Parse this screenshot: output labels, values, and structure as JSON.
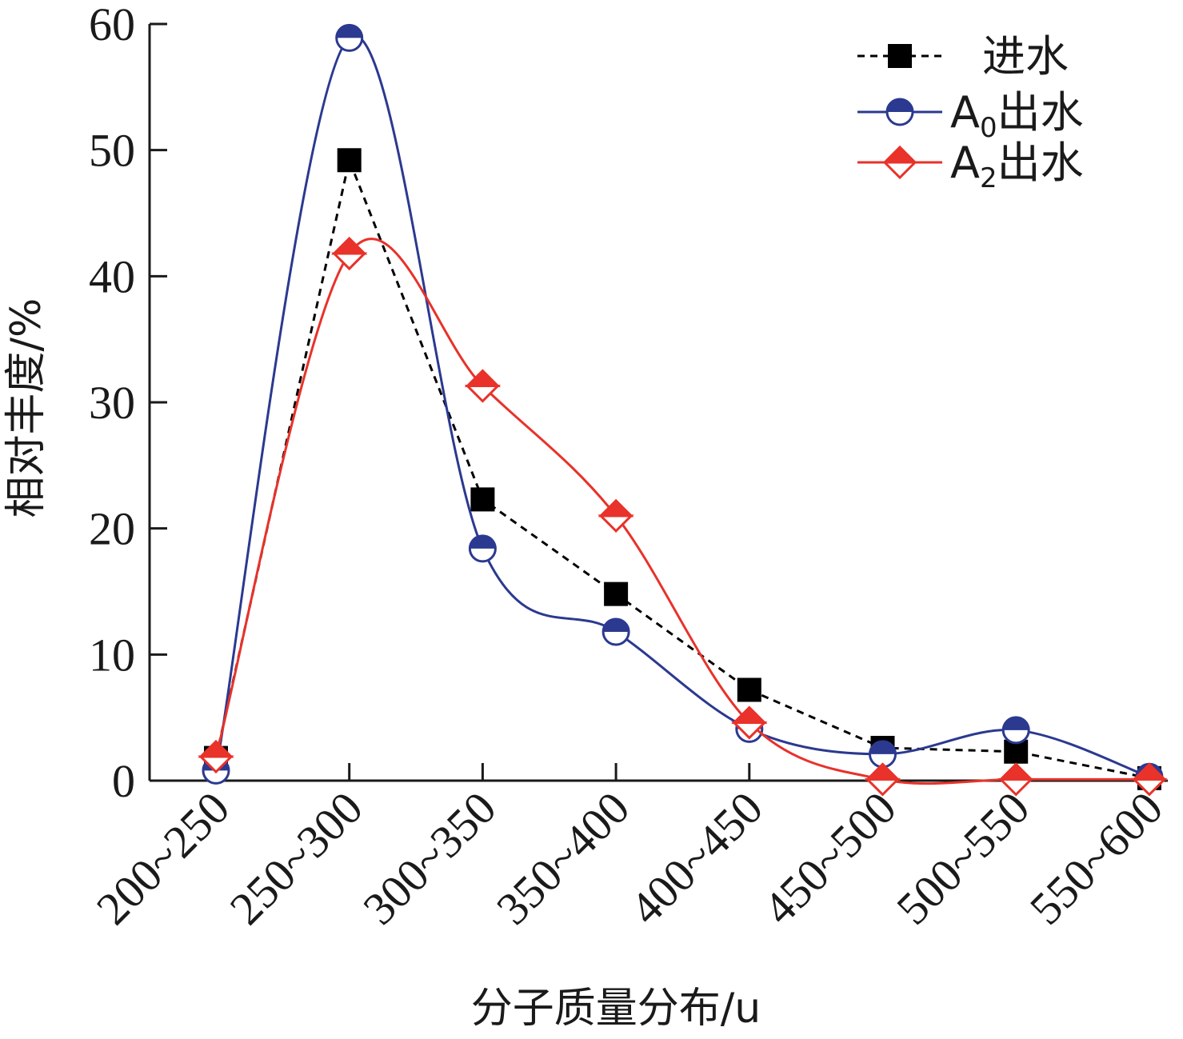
{
  "chart_data": {
    "type": "line",
    "xlabel": "分子质量分布/u",
    "ylabel": "相对丰度/%",
    "categories": [
      "200~250",
      "250~300",
      "300~350",
      "350~400",
      "400~450",
      "450~500",
      "500~550",
      "550~600"
    ],
    "ylim": [
      0,
      60
    ],
    "yticks": [
      "0",
      "10",
      "20",
      "30",
      "40",
      "50",
      "60"
    ],
    "grid": false,
    "legend_position": "top-right",
    "series": [
      {
        "name": "进水",
        "legend_main": "进水",
        "legend_sub": "",
        "legend_tail": "",
        "values": [
          1.8,
          49.2,
          22.3,
          14.8,
          7.2,
          2.6,
          2.3,
          0.2
        ],
        "color": "#000000",
        "line": "dashed",
        "smooth": false,
        "marker": "square"
      },
      {
        "name": "A0出水",
        "legend_main": "A",
        "legend_sub": "0",
        "legend_tail": "出水",
        "values": [
          0.8,
          58.9,
          18.4,
          11.8,
          4.1,
          2.1,
          4.0,
          0.3
        ],
        "color": "#2b3990",
        "line": "solid",
        "smooth": true,
        "marker": "circle"
      },
      {
        "name": "A2出水",
        "legend_main": "A",
        "legend_sub": "2",
        "legend_tail": "出水",
        "values": [
          1.9,
          41.8,
          31.3,
          21.0,
          4.6,
          0.1,
          0.1,
          0.1
        ],
        "color": "#e8322a",
        "line": "solid",
        "smooth": true,
        "marker": "diamond"
      }
    ]
  }
}
